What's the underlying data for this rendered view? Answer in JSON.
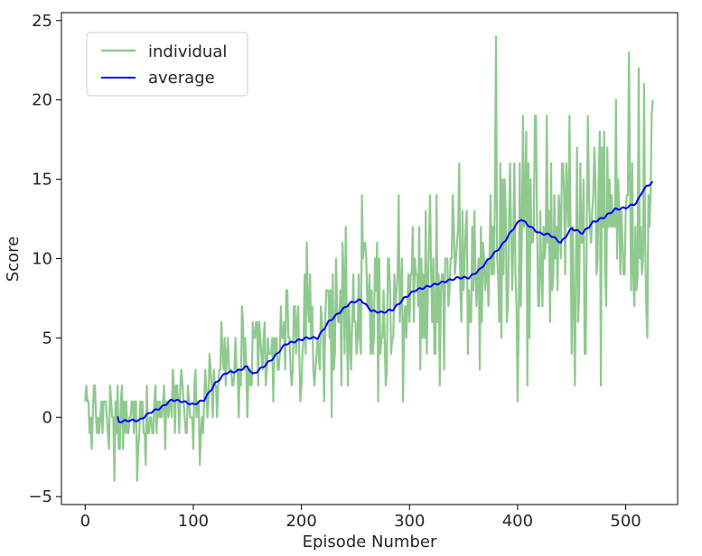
{
  "chart_data": {
    "type": "line",
    "xlabel": "Episode Number",
    "ylabel": "Score",
    "xlim": [
      -22,
      548
    ],
    "ylim": [
      -5.5,
      25.5
    ],
    "xticks": [
      0,
      100,
      200,
      300,
      400,
      500
    ],
    "yticks": [
      -5,
      0,
      5,
      10,
      15,
      20,
      25
    ],
    "xtick_labels": [
      "0",
      "100",
      "200",
      "300",
      "400",
      "500"
    ],
    "ytick_labels": [
      "−5",
      "0",
      "5",
      "10",
      "15",
      "20",
      "25"
    ],
    "grid": false,
    "legend": {
      "placement": "top-left"
    },
    "series": [
      {
        "name": "individual",
        "color": "#8fc98f",
        "kind": "noisy",
        "x_start": 0,
        "x_end": 525,
        "notable_points": [
          {
            "x": 0,
            "y": 1
          },
          {
            "x": 1,
            "y": 2
          },
          {
            "x": 22,
            "y": -2
          },
          {
            "x": 27,
            "y": -4
          },
          {
            "x": 48,
            "y": -4
          },
          {
            "x": 380,
            "y": 24
          },
          {
            "x": 400,
            "y": 1
          },
          {
            "x": 503,
            "y": 23
          },
          {
            "x": 525,
            "y": 20
          }
        ]
      },
      {
        "name": "average",
        "color": "#0000ff",
        "kind": "smooth",
        "points": [
          [
            30,
            -0.3
          ],
          [
            40,
            -0.2
          ],
          [
            50,
            -0.2
          ],
          [
            60,
            0.3
          ],
          [
            70,
            0.6
          ],
          [
            80,
            1.1
          ],
          [
            90,
            1.0
          ],
          [
            100,
            0.8
          ],
          [
            110,
            1.1
          ],
          [
            120,
            2.1
          ],
          [
            130,
            2.8
          ],
          [
            140,
            2.9
          ],
          [
            150,
            3.2
          ],
          [
            155,
            2.7
          ],
          [
            165,
            3.2
          ],
          [
            175,
            3.8
          ],
          [
            185,
            4.6
          ],
          [
            195,
            4.8
          ],
          [
            205,
            5.0
          ],
          [
            215,
            5.0
          ],
          [
            225,
            6.0
          ],
          [
            235,
            6.6
          ],
          [
            245,
            7.2
          ],
          [
            255,
            7.4
          ],
          [
            265,
            6.7
          ],
          [
            275,
            6.6
          ],
          [
            285,
            6.8
          ],
          [
            295,
            7.5
          ],
          [
            305,
            8.0
          ],
          [
            315,
            8.2
          ],
          [
            325,
            8.4
          ],
          [
            335,
            8.6
          ],
          [
            345,
            8.8
          ],
          [
            355,
            8.8
          ],
          [
            365,
            9.3
          ],
          [
            375,
            10.1
          ],
          [
            385,
            10.8
          ],
          [
            395,
            11.8
          ],
          [
            403,
            12.5
          ],
          [
            410,
            12.1
          ],
          [
            420,
            11.6
          ],
          [
            430,
            11.5
          ],
          [
            440,
            11.0
          ],
          [
            450,
            11.9
          ],
          [
            460,
            11.6
          ],
          [
            470,
            12.3
          ],
          [
            480,
            12.6
          ],
          [
            490,
            13.1
          ],
          [
            500,
            13.2
          ],
          [
            510,
            13.5
          ],
          [
            515,
            14.2
          ],
          [
            520,
            14.6
          ],
          [
            525,
            14.8
          ]
        ]
      }
    ]
  }
}
